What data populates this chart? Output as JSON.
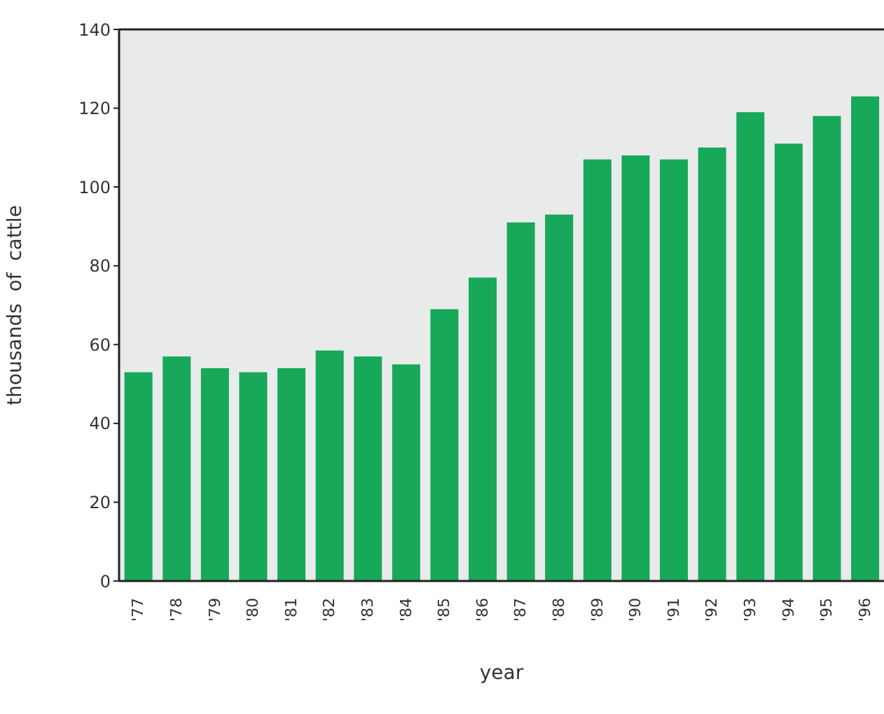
{
  "chart_data": {
    "type": "bar",
    "xlabel": "year",
    "ylabel": "thousands of cattle",
    "categories": [
      "'77",
      "'78",
      "'79",
      "'80",
      "'81",
      "'82",
      "'83",
      "'84",
      "'85",
      "'86",
      "'87",
      "'88",
      "'89",
      "'90",
      "'91",
      "'92",
      "'93",
      "'94",
      "'95",
      "'96"
    ],
    "values": [
      53,
      57,
      54,
      53,
      54,
      58.5,
      57,
      55,
      69,
      77,
      91,
      93,
      107,
      108,
      107,
      110,
      119,
      111,
      118,
      123
    ],
    "color": "#17a85a",
    "ylim": [
      0,
      140
    ],
    "yticks": [
      0,
      20,
      40,
      60,
      80,
      100,
      120,
      140
    ],
    "grid": false
  }
}
